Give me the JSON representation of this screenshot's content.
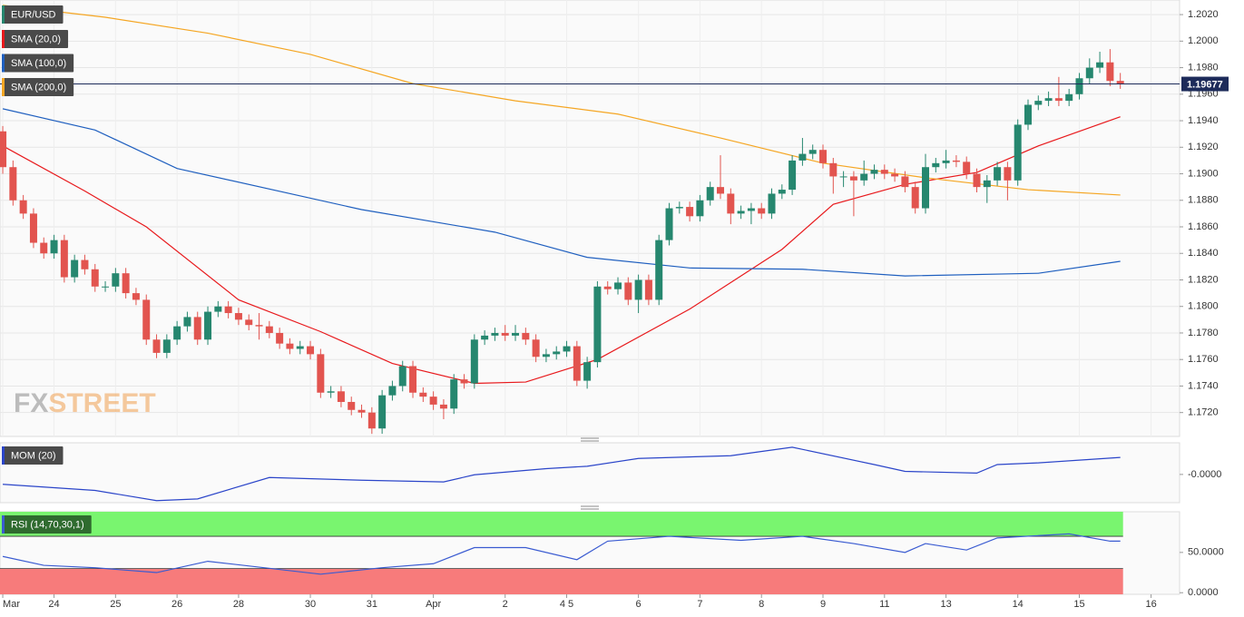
{
  "chart_data": [
    {
      "type": "candlestick",
      "name": "EUR/USD",
      "up_color": "#26876f",
      "down_color": "#e2544f",
      "open": [
        1.1932,
        1.1905,
        1.188,
        1.187,
        1.1848,
        1.184,
        1.185,
        1.1822,
        1.1835,
        1.1828,
        1.1815,
        1.1815,
        1.1825,
        1.181,
        1.1805,
        1.1775,
        1.1765,
        1.1775,
        1.1785,
        1.1792,
        1.1775,
        1.1796,
        1.18,
        1.1795,
        1.179,
        1.1786,
        1.1785,
        1.178,
        1.1772,
        1.1768,
        1.177,
        1.1764,
        1.1735,
        1.1736,
        1.1728,
        1.1722,
        1.172,
        1.1708,
        1.1733,
        1.174,
        1.1755,
        1.1735,
        1.1732,
        1.1726,
        1.1723,
        1.1745,
        1.1742,
        1.1775,
        1.1778,
        1.178,
        1.1778,
        1.178,
        1.1775,
        1.1762,
        1.1764,
        1.1766,
        1.177,
        1.1744,
        1.1758,
        1.1815,
        1.1813,
        1.1818,
        1.1805,
        1.182,
        1.1805,
        1.185,
        1.1874,
        1.1875,
        1.1868,
        1.188,
        1.189,
        1.1885,
        1.187,
        1.1872,
        1.1874,
        1.187,
        1.1885,
        1.1888,
        1.191,
        1.1915,
        1.1918,
        1.1908,
        1.1898,
        1.1898,
        1.1895,
        1.19,
        1.1903,
        1.19,
        1.1898,
        1.189,
        1.1874,
        1.1905,
        1.1908,
        1.191,
        1.1909,
        1.19,
        1.189,
        1.1895,
        1.1905,
        1.1895,
        1.1937,
        1.1952,
        1.1955,
        1.1957,
        1.1955,
        1.196,
        1.1972,
        1.198,
        1.1984,
        1.197
      ],
      "high": [
        1.1936,
        1.191,
        1.1884,
        1.1874,
        1.1852,
        1.1854,
        1.1854,
        1.1839,
        1.1839,
        1.1832,
        1.1819,
        1.1829,
        1.1829,
        1.1814,
        1.1809,
        1.1779,
        1.1779,
        1.1789,
        1.1796,
        1.1796,
        1.18,
        1.1804,
        1.1804,
        1.1799,
        1.1794,
        1.1795,
        1.1789,
        1.1784,
        1.1776,
        1.1774,
        1.1774,
        1.1768,
        1.174,
        1.174,
        1.1732,
        1.1726,
        1.1724,
        1.1737,
        1.1744,
        1.1759,
        1.1759,
        1.1739,
        1.1736,
        1.173,
        1.1749,
        1.1749,
        1.1779,
        1.1782,
        1.1784,
        1.1786,
        1.1786,
        1.1784,
        1.1779,
        1.1768,
        1.177,
        1.1774,
        1.1774,
        1.1762,
        1.1819,
        1.1819,
        1.1822,
        1.1822,
        1.1824,
        1.1824,
        1.1854,
        1.1878,
        1.1879,
        1.1879,
        1.1884,
        1.1894,
        1.1914,
        1.1889,
        1.1876,
        1.1878,
        1.1878,
        1.1889,
        1.1892,
        1.1914,
        1.1927,
        1.1922,
        1.1922,
        1.1912,
        1.1902,
        1.1902,
        1.191,
        1.1907,
        1.1907,
        1.1904,
        1.1902,
        1.1894,
        1.1915,
        1.1912,
        1.1918,
        1.1914,
        1.1913,
        1.1904,
        1.1899,
        1.1909,
        1.1909,
        1.1941,
        1.1956,
        1.1959,
        1.1962,
        1.1973,
        1.1964,
        1.1976,
        1.1987,
        1.1992,
        1.1994,
        1.1976
      ],
      "low": [
        1.19,
        1.1876,
        1.1866,
        1.1844,
        1.1836,
        1.1836,
        1.1818,
        1.1818,
        1.1824,
        1.1811,
        1.1811,
        1.1811,
        1.1806,
        1.1801,
        1.1771,
        1.1761,
        1.1761,
        1.1771,
        1.1781,
        1.1771,
        1.1771,
        1.1792,
        1.1791,
        1.1786,
        1.1782,
        1.1775,
        1.1776,
        1.1768,
        1.1764,
        1.1764,
        1.176,
        1.1731,
        1.1731,
        1.1724,
        1.1718,
        1.1716,
        1.1704,
        1.1704,
        1.1729,
        1.1736,
        1.1731,
        1.1728,
        1.1722,
        1.1715,
        1.1719,
        1.1738,
        1.1738,
        1.1771,
        1.1774,
        1.1774,
        1.1774,
        1.1771,
        1.1758,
        1.1758,
        1.176,
        1.1762,
        1.174,
        1.1738,
        1.1754,
        1.1809,
        1.1809,
        1.1801,
        1.1795,
        1.1801,
        1.1801,
        1.1846,
        1.187,
        1.1864,
        1.1864,
        1.1876,
        1.1881,
        1.1862,
        1.1866,
        1.1862,
        1.1866,
        1.1866,
        1.1881,
        1.1884,
        1.1906,
        1.1911,
        1.1904,
        1.1885,
        1.189,
        1.1868,
        1.1891,
        1.1896,
        1.1896,
        1.1894,
        1.1886,
        1.187,
        1.187,
        1.1901,
        1.1904,
        1.1905,
        1.1896,
        1.1886,
        1.1878,
        1.1891,
        1.188,
        1.1891,
        1.1933,
        1.1948,
        1.1951,
        1.1951,
        1.1951,
        1.1956,
        1.1968,
        1.1976,
        1.1966,
        1.1964
      ],
      "close": [
        1.1905,
        1.188,
        1.187,
        1.1848,
        1.184,
        1.185,
        1.1822,
        1.1835,
        1.1828,
        1.1815,
        1.1815,
        1.1825,
        1.181,
        1.1805,
        1.1775,
        1.1765,
        1.1775,
        1.1785,
        1.1792,
        1.1775,
        1.1796,
        1.18,
        1.1795,
        1.179,
        1.1786,
        1.1785,
        1.178,
        1.1772,
        1.1768,
        1.177,
        1.1764,
        1.1735,
        1.1736,
        1.1728,
        1.1722,
        1.172,
        1.1708,
        1.1733,
        1.174,
        1.1755,
        1.1735,
        1.1732,
        1.1726,
        1.1723,
        1.1745,
        1.1742,
        1.1775,
        1.1778,
        1.178,
        1.1778,
        1.178,
        1.1775,
        1.1762,
        1.1764,
        1.1766,
        1.177,
        1.1744,
        1.1758,
        1.1815,
        1.1813,
        1.1818,
        1.1805,
        1.182,
        1.1805,
        1.185,
        1.1874,
        1.1875,
        1.1868,
        1.188,
        1.189,
        1.1885,
        1.187,
        1.1872,
        1.1874,
        1.187,
        1.1885,
        1.1888,
        1.191,
        1.1915,
        1.1918,
        1.1908,
        1.1898,
        1.1898,
        1.1895,
        1.19,
        1.1903,
        1.19,
        1.1898,
        1.189,
        1.1874,
        1.1905,
        1.1908,
        1.191,
        1.1909,
        1.19,
        1.189,
        1.1895,
        1.1905,
        1.1895,
        1.1937,
        1.1952,
        1.1955,
        1.1957,
        1.1955,
        1.196,
        1.1972,
        1.198,
        1.1984,
        1.197,
        1.1968
      ],
      "series": [
        {
          "name": "SMA (20,0)",
          "color": "#e8191c",
          "x": [
            0,
            8,
            14,
            23,
            31,
            38,
            46,
            51,
            58,
            67,
            76,
            81,
            88,
            95,
            101,
            109
          ],
          "values": [
            1.1921,
            1.1887,
            1.186,
            1.1805,
            1.1781,
            1.1757,
            1.1742,
            1.1743,
            1.176,
            1.1798,
            1.1843,
            1.1877,
            1.1892,
            1.1901,
            1.1921,
            1.1943
          ]
        },
        {
          "name": "SMA (100,0)",
          "color": "#1f5fbf",
          "x": [
            0,
            9,
            17,
            35,
            48,
            57,
            67,
            78,
            88,
            101,
            109
          ],
          "values": [
            1.1949,
            1.1933,
            1.1904,
            1.1873,
            1.1856,
            1.1837,
            1.1829,
            1.1828,
            1.1823,
            1.1825,
            1.1834
          ]
        },
        {
          "name": "SMA (200,0)",
          "color": "#f5a623",
          "x": [
            0,
            10,
            20,
            30,
            40,
            50,
            60,
            70,
            80,
            90,
            100,
            109
          ],
          "values": [
            1.2027,
            1.2018,
            1.2006,
            1.199,
            1.1968,
            1.1955,
            1.1945,
            1.1927,
            1.1908,
            1.1897,
            1.1888,
            1.1884
          ]
        }
      ],
      "last_value": 1.19677,
      "last_color": "#1d2b5a",
      "xlim": [
        -0.27,
        114.78
      ],
      "ylim": [
        1.1702,
        1.2031
      ],
      "yticks": [
        {
          "value": 1.172,
          "label": "1.1720"
        },
        {
          "value": 1.174,
          "label": "1.1740"
        },
        {
          "value": 1.176,
          "label": "1.1760"
        },
        {
          "value": 1.178,
          "label": "1.1780"
        },
        {
          "value": 1.18,
          "label": "1.1800"
        },
        {
          "value": 1.182,
          "label": "1.1820"
        },
        {
          "value": 1.184,
          "label": "1.1840"
        },
        {
          "value": 1.186,
          "label": "1.1860"
        },
        {
          "value": 1.188,
          "label": "1.1880"
        },
        {
          "value": 1.19,
          "label": "1.1900"
        },
        {
          "value": 1.192,
          "label": "1.1920"
        },
        {
          "value": 1.194,
          "label": "1.1940"
        },
        {
          "value": 1.196,
          "label": "1.1960"
        },
        {
          "value": 1.198,
          "label": "1.1980"
        },
        {
          "value": 1.2,
          "label": "1.2000"
        },
        {
          "value": 1.202,
          "label": "1.2020"
        }
      ],
      "xticks": [
        {
          "value": 0,
          "label": "Mar"
        },
        {
          "value": 5,
          "label": "24"
        },
        {
          "value": 11,
          "label": "25"
        },
        {
          "value": 17,
          "label": "26"
        },
        {
          "value": 23,
          "label": "28"
        },
        {
          "value": 30,
          "label": "30"
        },
        {
          "value": 36,
          "label": "31"
        },
        {
          "value": 42,
          "label": "Apr"
        },
        {
          "value": 49,
          "label": "2"
        },
        {
          "value": 55,
          "label": "4 5"
        },
        {
          "value": 62,
          "label": "6"
        },
        {
          "value": 68,
          "label": "7"
        },
        {
          "value": 74,
          "label": "8"
        },
        {
          "value": 80,
          "label": "9"
        },
        {
          "value": 86,
          "label": "11"
        },
        {
          "value": 92,
          "label": "13"
        },
        {
          "value": 99,
          "label": "14"
        },
        {
          "value": 105,
          "label": "15"
        },
        {
          "value": 112,
          "label": "16"
        }
      ],
      "grid": true,
      "watermark": [
        "FX",
        "STREET"
      ]
    },
    {
      "type": "line",
      "series": [
        {
          "name": "MOM (20)",
          "color": "#2b45c9",
          "x": [
            0,
            9,
            15,
            19,
            26,
            35,
            43,
            46,
            53,
            57,
            62,
            71,
            77,
            85,
            88,
            95,
            97,
            101,
            106,
            109
          ],
          "values": [
            -0.0029,
            -0.0047,
            -0.0077,
            -0.0072,
            -0.0009,
            -0.0017,
            -0.0022,
            -0.0001,
            0.0017,
            0.0024,
            0.0047,
            0.0055,
            0.008,
            0.0029,
            0.0009,
            0.0004,
            0.0029,
            0.0034,
            0.0044,
            0.005
          ]
        }
      ],
      "ylim": [
        -0.0083,
        0.0093
      ],
      "yticks": [
        {
          "value": 0,
          "label": "-0.0000"
        }
      ]
    },
    {
      "type": "line",
      "series": [
        {
          "name": "RSI (14,70,30,1)",
          "color": "#3a5bd1",
          "x": [
            0,
            4,
            9,
            15,
            20,
            31,
            37,
            42,
            46,
            51,
            56,
            59,
            65,
            72,
            78,
            83,
            88,
            90,
            94,
            97,
            104,
            108,
            109
          ],
          "values": [
            45,
            34,
            31,
            25,
            39,
            23,
            31,
            36,
            56,
            56,
            41,
            64,
            70,
            65,
            70,
            61,
            50,
            61,
            53,
            68,
            73,
            64,
            64
          ]
        }
      ],
      "bands": [
        {
          "above": 70,
          "color": "#79f56f"
        },
        {
          "below": 30,
          "color": "#f77b7b"
        }
      ],
      "ylim": [
        -2,
        100.5
      ],
      "yticks": [
        {
          "value": 0,
          "label": "0.0000"
        },
        {
          "value": 50,
          "label": "50.0000"
        }
      ]
    }
  ]
}
